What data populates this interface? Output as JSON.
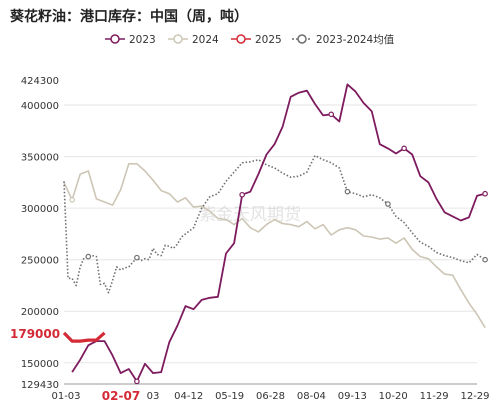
{
  "chart_data": {
    "type": "line",
    "title": "葵花籽油：港口库存：中国（周，吨）",
    "watermark": "紫金天风期货",
    "xlabel": "",
    "ylabel": "",
    "x_tick_labels": [
      "01-03",
      "02-07",
      "03",
      "04-12",
      "05-19",
      "06-28",
      "08-04",
      "09-13",
      "10-20",
      "11-29",
      "12-29"
    ],
    "y_ticks": [
      129430,
      150000,
      200000,
      250000,
      300000,
      350000,
      400000,
      424300
    ],
    "y_tick_labels": [
      "129430",
      "150000",
      "200000",
      "250000",
      "300000",
      "350000",
      "400000",
      "424300"
    ],
    "ylim": [
      129430,
      424300
    ],
    "x_domain": [
      1,
      52
    ],
    "grid": "horizontal",
    "legend_position": "top",
    "highlight": {
      "x_label": "02-07",
      "y_label": "179000",
      "y_value": 179000
    },
    "series": [
      {
        "name": "2023",
        "color": "#7d1b5e",
        "style": "solid",
        "points": [
          [
            2,
            141000
          ],
          [
            3,
            153000
          ],
          [
            4,
            167000
          ],
          [
            5,
            171000
          ],
          [
            6,
            171000
          ],
          [
            7,
            157000
          ],
          [
            8,
            140000
          ],
          [
            9,
            144000
          ],
          [
            10,
            132000
          ],
          [
            11,
            149000
          ],
          [
            12,
            140000
          ],
          [
            13,
            141000
          ],
          [
            14,
            170000
          ],
          [
            15,
            186000
          ],
          [
            16,
            205000
          ],
          [
            17,
            202000
          ],
          [
            18,
            211000
          ],
          [
            19,
            213000
          ],
          [
            20,
            214000
          ],
          [
            21,
            256000
          ],
          [
            22,
            266000
          ],
          [
            23,
            313000
          ],
          [
            24,
            316000
          ],
          [
            25,
            333000
          ],
          [
            26,
            352000
          ],
          [
            27,
            362000
          ],
          [
            28,
            379000
          ],
          [
            29,
            408000
          ],
          [
            30,
            412000
          ],
          [
            31,
            414000
          ],
          [
            32,
            401000
          ],
          [
            33,
            390000
          ],
          [
            34,
            391000
          ],
          [
            35,
            384000
          ],
          [
            36,
            420000
          ],
          [
            37,
            413000
          ],
          [
            38,
            402000
          ],
          [
            39,
            394000
          ],
          [
            40,
            362000
          ],
          [
            41,
            358000
          ],
          [
            42,
            353000
          ],
          [
            43,
            358000
          ],
          [
            44,
            352000
          ],
          [
            45,
            331000
          ],
          [
            46,
            325000
          ],
          [
            47,
            309000
          ],
          [
            48,
            296000
          ],
          [
            49,
            292000
          ],
          [
            50,
            288000
          ],
          [
            51,
            291000
          ],
          [
            52,
            312000
          ],
          [
            53,
            314000
          ]
        ]
      },
      {
        "name": "2024",
        "color": "#cdc6b5",
        "style": "solid",
        "points": [
          [
            1,
            325000
          ],
          [
            2,
            308000
          ],
          [
            3,
            333000
          ],
          [
            4,
            336000
          ],
          [
            5,
            309000
          ],
          [
            6,
            306000
          ],
          [
            7,
            303000
          ],
          [
            8,
            318000
          ],
          [
            9,
            343000
          ],
          [
            10,
            343000
          ],
          [
            11,
            336000
          ],
          [
            12,
            327000
          ],
          [
            13,
            317000
          ],
          [
            14,
            314000
          ],
          [
            15,
            306000
          ],
          [
            16,
            310000
          ],
          [
            17,
            301000
          ],
          [
            18,
            302000
          ],
          [
            19,
            297000
          ],
          [
            20,
            290000
          ],
          [
            21,
            289000
          ],
          [
            22,
            284000
          ],
          [
            23,
            290000
          ],
          [
            24,
            281000
          ],
          [
            25,
            277000
          ],
          [
            26,
            284000
          ],
          [
            27,
            289000
          ],
          [
            28,
            285000
          ],
          [
            29,
            284000
          ],
          [
            30,
            282000
          ],
          [
            31,
            287000
          ],
          [
            32,
            280000
          ],
          [
            33,
            284000
          ],
          [
            34,
            274000
          ],
          [
            35,
            279000
          ],
          [
            36,
            281000
          ],
          [
            37,
            279000
          ],
          [
            38,
            273000
          ],
          [
            39,
            272000
          ],
          [
            40,
            270000
          ],
          [
            41,
            271000
          ],
          [
            42,
            266000
          ],
          [
            43,
            271000
          ],
          [
            44,
            260000
          ],
          [
            45,
            253000
          ],
          [
            46,
            251000
          ],
          [
            47,
            243000
          ],
          [
            48,
            236000
          ],
          [
            49,
            235000
          ],
          [
            50,
            221000
          ],
          [
            51,
            208000
          ],
          [
            52,
            197000
          ],
          [
            53,
            184000
          ]
        ]
      },
      {
        "name": "2025",
        "color": "#d42a35",
        "style": "solid",
        "points": [
          [
            1,
            179000
          ],
          [
            2,
            171000
          ],
          [
            3,
            171000
          ],
          [
            4,
            172000
          ],
          [
            5,
            172000
          ],
          [
            6,
            179000
          ]
        ]
      },
      {
        "name": "2023-2024均值",
        "color": "#6d6d6d",
        "style": "dotted",
        "points": [
          [
            1,
            326000
          ],
          [
            1.5,
            232000
          ],
          [
            2,
            232000
          ],
          [
            2.5,
            225000
          ],
          [
            3,
            243000
          ],
          [
            3.5,
            252000
          ],
          [
            4,
            253000
          ],
          [
            4.5,
            254000
          ],
          [
            5,
            253000
          ],
          [
            5.5,
            226000
          ],
          [
            6,
            227000
          ],
          [
            6.5,
            218000
          ],
          [
            7,
            230000
          ],
          [
            7.5,
            243000
          ],
          [
            8,
            240000
          ],
          [
            8.5,
            242000
          ],
          [
            9,
            243000
          ],
          [
            10,
            252000
          ],
          [
            10.5,
            249000
          ],
          [
            11,
            251000
          ],
          [
            11.5,
            250000
          ],
          [
            12,
            261000
          ],
          [
            12.5,
            255000
          ],
          [
            13,
            254000
          ],
          [
            13.5,
            264000
          ],
          [
            14,
            263000
          ],
          [
            14.5,
            261000
          ],
          [
            15,
            265000
          ],
          [
            15.5,
            272000
          ],
          [
            16,
            275000
          ],
          [
            17,
            281000
          ],
          [
            18,
            300000
          ],
          [
            19,
            311000
          ],
          [
            20,
            314000
          ],
          [
            21,
            326000
          ],
          [
            22,
            335000
          ],
          [
            23,
            344000
          ],
          [
            24,
            345000
          ],
          [
            25,
            347000
          ],
          [
            26,
            342000
          ],
          [
            27,
            339000
          ],
          [
            28,
            334000
          ],
          [
            29,
            330000
          ],
          [
            30,
            331000
          ],
          [
            31,
            335000
          ],
          [
            32,
            351000
          ],
          [
            33,
            347000
          ],
          [
            34,
            344000
          ],
          [
            35,
            339000
          ],
          [
            36,
            316000
          ],
          [
            37,
            314000
          ],
          [
            38,
            311000
          ],
          [
            39,
            313000
          ],
          [
            40,
            310000
          ],
          [
            41,
            304000
          ],
          [
            42,
            292000
          ],
          [
            43,
            286000
          ],
          [
            44,
            276000
          ],
          [
            45,
            267000
          ],
          [
            46,
            263000
          ],
          [
            47,
            257000
          ],
          [
            48,
            254000
          ],
          [
            49,
            252000
          ],
          [
            50,
            249000
          ],
          [
            51,
            247000
          ],
          [
            52,
            255000
          ],
          [
            53,
            250000
          ]
        ]
      }
    ]
  }
}
